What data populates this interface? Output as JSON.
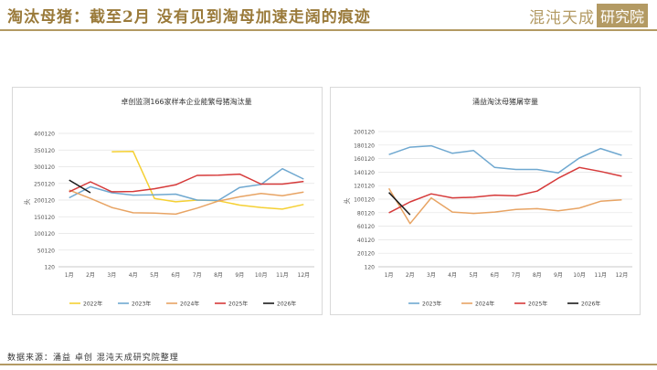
{
  "header": {
    "title": "淘汰母猪：截至2月 没有见到淘母加速走阔的痕迹",
    "logo_text": "混沌天成",
    "logo_box": "研究院"
  },
  "source": "数据来源：涌益 卓创 混沌天成研究院整理",
  "colors": {
    "2022年": "#f5d033",
    "2023年": "#6fa8d0",
    "2024年": "#e8a464",
    "2025年": "#d63a3a",
    "2026年": "#1a1a1a"
  },
  "chart_data": [
    {
      "type": "line",
      "title": "卓创监测166家样本企业能繁母猪淘汰量",
      "ylabel": "头",
      "categories": [
        "1月",
        "2月",
        "3月",
        "4月",
        "5月",
        "6月",
        "7月",
        "8月",
        "9月",
        "10月",
        "11月",
        "12月"
      ],
      "yticks": [
        "120",
        "50120",
        "100120",
        "150120",
        "200120",
        "250120",
        "300120",
        "350120",
        "400120"
      ],
      "ylim": [
        120,
        400120
      ],
      "grid": true,
      "legend_position": "bottom",
      "series": [
        {
          "name": "2022年",
          "values": [
            null,
            null,
            345000,
            346000,
            205000,
            195000,
            200000,
            198000,
            185000,
            178000,
            173000,
            187000
          ]
        },
        {
          "name": "2023年",
          "values": [
            207000,
            240000,
            222000,
            215000,
            216000,
            218000,
            200000,
            199000,
            238000,
            247000,
            294000,
            263000
          ]
        },
        {
          "name": "2024年",
          "values": [
            230000,
            205000,
            178000,
            162000,
            161000,
            158000,
            176000,
            197000,
            210000,
            220000,
            213000,
            224000
          ]
        },
        {
          "name": "2025年",
          "values": [
            225000,
            255000,
            225000,
            226000,
            234000,
            246000,
            274000,
            275000,
            278000,
            248000,
            248000,
            256000
          ]
        },
        {
          "name": "2026年",
          "values": [
            260000,
            222000,
            null,
            null,
            null,
            null,
            null,
            null,
            null,
            null,
            null,
            null
          ]
        }
      ]
    },
    {
      "type": "line",
      "title": "涌益淘汰母猪屠宰量",
      "ylabel": "头",
      "categories": [
        "1月",
        "2月",
        "3月",
        "4月",
        "5月",
        "6月",
        "7月",
        "8月",
        "9月",
        "10月",
        "11月",
        "12月"
      ],
      "yticks": [
        "120",
        "20120",
        "40120",
        "60120",
        "80120",
        "100120",
        "120120",
        "140120",
        "160120",
        "180120",
        "200120"
      ],
      "ylim": [
        120,
        200120
      ],
      "grid": true,
      "legend_position": "bottom",
      "series": [
        {
          "name": "2023年",
          "values": [
            166000,
            177000,
            179000,
            168000,
            172000,
            147000,
            144000,
            144000,
            139000,
            161000,
            175000,
            165000
          ]
        },
        {
          "name": "2024年",
          "values": [
            116000,
            64000,
            102000,
            81000,
            79000,
            81000,
            85000,
            86000,
            83000,
            87000,
            97000,
            99000
          ]
        },
        {
          "name": "2025年",
          "values": [
            80000,
            96000,
            108000,
            102000,
            103000,
            106000,
            105000,
            112000,
            131000,
            147000,
            141000,
            134000
          ]
        },
        {
          "name": "2026年",
          "values": [
            110000,
            77000,
            null,
            null,
            null,
            null,
            null,
            null,
            null,
            null,
            null,
            null
          ]
        }
      ]
    }
  ]
}
